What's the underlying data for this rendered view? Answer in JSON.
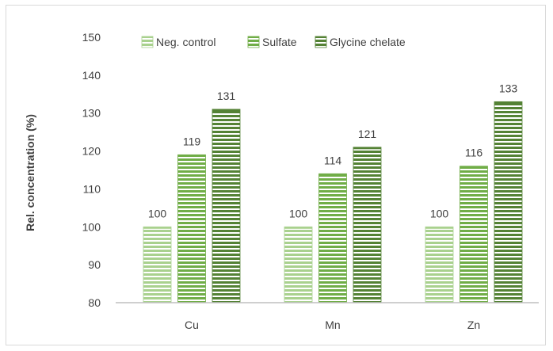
{
  "chart_data": {
    "type": "bar",
    "title": "",
    "xlabel": "",
    "ylabel": "Rel. concentration (%)",
    "ylim": [
      80,
      150
    ],
    "yticks": [
      80,
      90,
      100,
      110,
      120,
      130,
      140,
      150
    ],
    "categories": [
      "Cu",
      "Mn",
      "Zn"
    ],
    "series": [
      {
        "name": "Neg. control",
        "values": [
          100,
          100,
          100
        ],
        "color": "#a9d18e"
      },
      {
        "name": "Sulfate",
        "values": [
          119,
          114,
          116
        ],
        "color": "#70ad47"
      },
      {
        "name": "Glycine chelate",
        "values": [
          131,
          121,
          133
        ],
        "color": "#548235"
      }
    ],
    "data_labels": true,
    "grid": false,
    "legend_position": "top",
    "bar_fill": "horizontal-stripes"
  }
}
